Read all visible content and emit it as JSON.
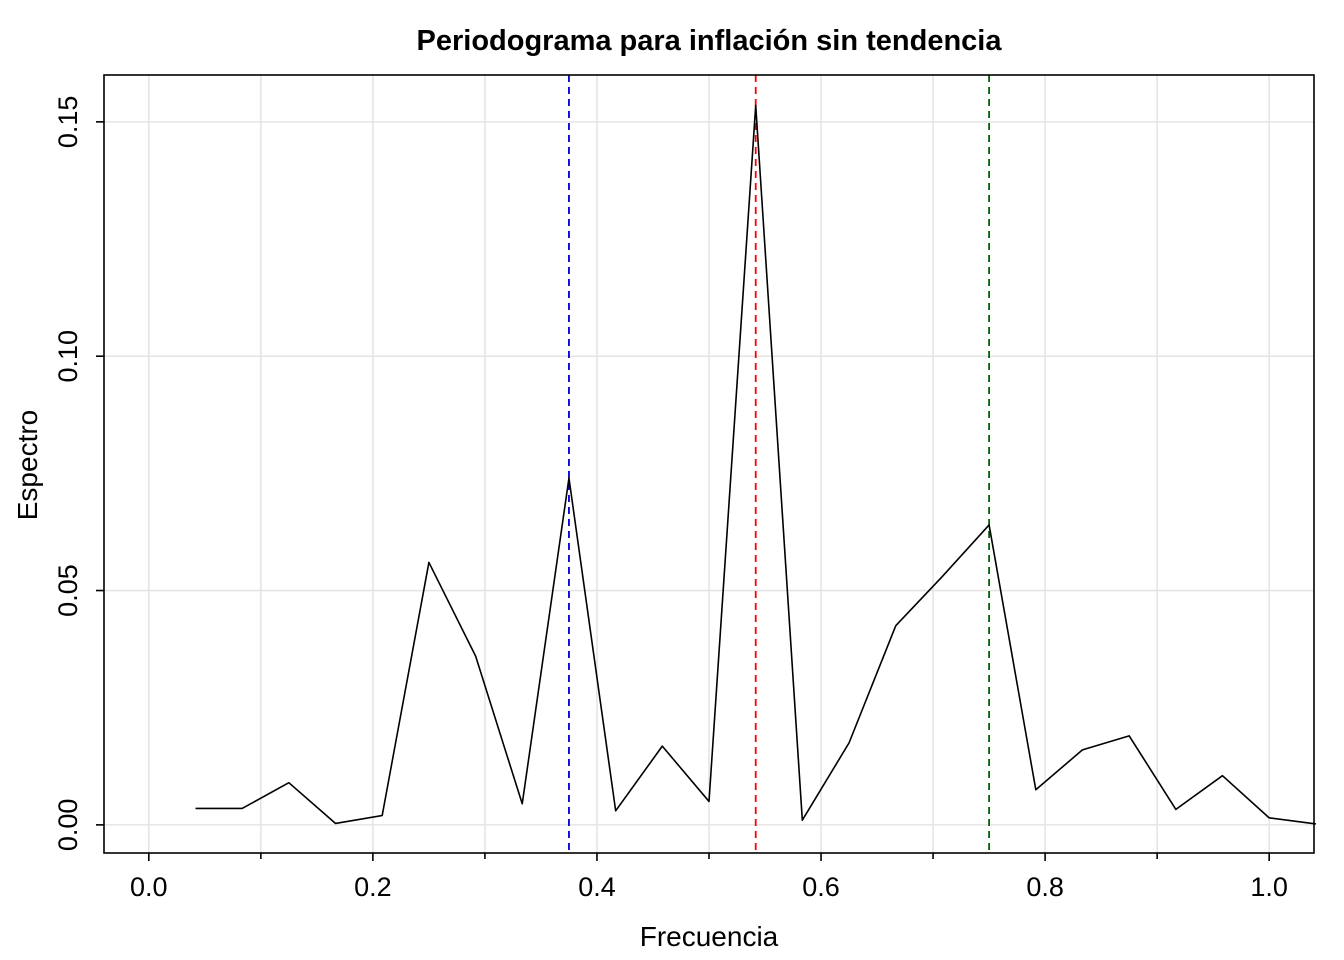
{
  "chart_data": {
    "type": "line",
    "title": "Periodograma para inflación sin tendencia",
    "xlabel": "Frecuencia",
    "ylabel": "Espectro",
    "xlim": [
      -0.04,
      1.04
    ],
    "ylim": [
      -0.006,
      0.16
    ],
    "xticks": [
      "0.0",
      "0.2",
      "0.4",
      "0.6",
      "0.8",
      "1.0"
    ],
    "xtick_values": [
      0.0,
      0.2,
      0.4,
      0.6,
      0.8,
      1.0
    ],
    "xminor_values": [
      0.1,
      0.3,
      0.5,
      0.7,
      0.9
    ],
    "yticks": [
      "0.00",
      "0.05",
      "0.10",
      "0.15"
    ],
    "ytick_values": [
      0.0,
      0.05,
      0.1,
      0.15
    ],
    "grid": true,
    "grid_color": "#e5e5e5",
    "series": [
      {
        "color": "#000000",
        "x": [
          0.0417,
          0.0833,
          0.125,
          0.1667,
          0.2083,
          0.25,
          0.2917,
          0.3333,
          0.375,
          0.4167,
          0.4583,
          0.5,
          0.5417,
          0.5833,
          0.625,
          0.6667,
          0.7083,
          0.75,
          0.7917,
          0.8333,
          0.875,
          0.9167,
          0.9583,
          1.0,
          1.0417
        ],
        "y": [
          0.0035,
          0.0035,
          0.009,
          0.0003,
          0.002,
          0.056,
          0.036,
          0.0045,
          0.074,
          0.003,
          0.0168,
          0.005,
          0.1535,
          0.001,
          0.0175,
          0.0425,
          0.053,
          0.064,
          0.0075,
          0.016,
          0.019,
          0.0033,
          0.0105,
          0.0015,
          0.0002
        ]
      }
    ],
    "vlines": [
      {
        "x": 0.375,
        "color": "#0000cd",
        "style": "dashed"
      },
      {
        "x": 0.5417,
        "color": "#ff0000",
        "style": "dashed"
      },
      {
        "x": 0.75,
        "color": "#006400",
        "style": "dashed"
      }
    ]
  }
}
